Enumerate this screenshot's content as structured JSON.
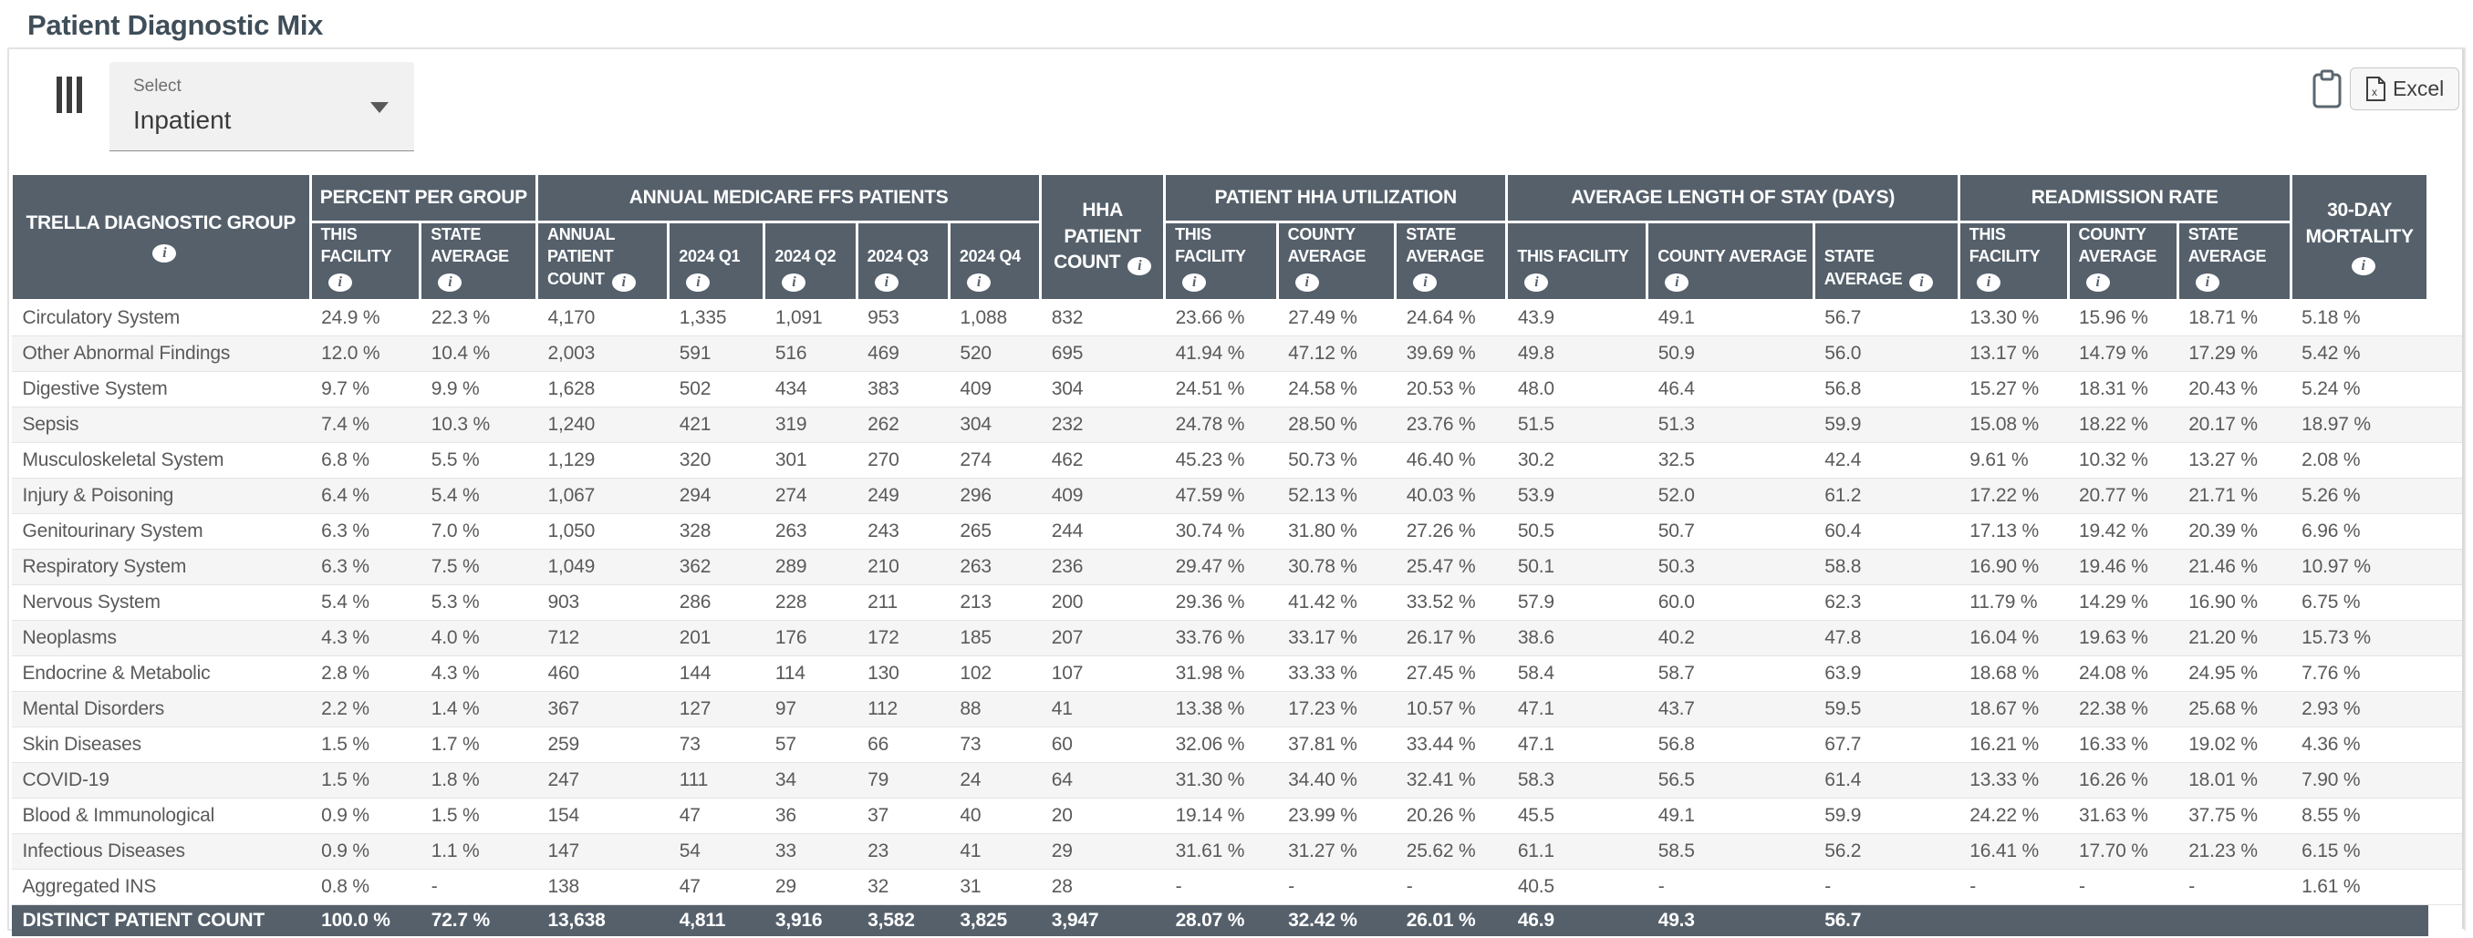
{
  "page": {
    "title": "Patient Diagnostic Mix"
  },
  "toolbar": {
    "select_label": "Select",
    "select_value": "Inpatient",
    "excel_label": "Excel",
    "clipboard_icon": "clipboard-icon",
    "grip_icon": "grip-vertical-icon",
    "info_icon_glyph": "i"
  },
  "colors": {
    "header_bg": "#55606B",
    "row_alt": "#F5F5F5",
    "title": "#3F4E59"
  },
  "table": {
    "header": {
      "groups": [
        {
          "label": "TRELLA DIAGNOSTIC GROUP",
          "info": true,
          "rowspan": 2
        },
        {
          "label": "PERCENT PER GROUP",
          "colspan": 2
        },
        {
          "label": "ANNUAL MEDICARE FFS PATIENTS",
          "colspan": 5
        },
        {
          "label": "HHA PATIENT COUNT",
          "info": true,
          "rowspan": 2
        },
        {
          "label": "PATIENT HHA UTILIZATION",
          "colspan": 3
        },
        {
          "label": "AVERAGE LENGTH OF STAY (DAYS)",
          "colspan": 3
        },
        {
          "label": "READMISSION RATE",
          "colspan": 3
        },
        {
          "label": "30-DAY MORTALITY",
          "info": true,
          "rowspan": 2
        },
        {
          "label": "",
          "rowspan": 2,
          "spacer": true
        }
      ],
      "sub": [
        {
          "label": "THIS FACILITY",
          "info": true
        },
        {
          "label": "STATE AVERAGE",
          "info": true
        },
        {
          "label": "ANNUAL PATIENT COUNT",
          "info": true
        },
        {
          "label": "2024 Q1",
          "info": true
        },
        {
          "label": "2024 Q2",
          "info": true
        },
        {
          "label": "2024 Q3",
          "info": true
        },
        {
          "label": "2024 Q4",
          "info": true
        },
        {
          "label": "THIS FACILITY",
          "info": true
        },
        {
          "label": "COUNTY AVERAGE",
          "info": true
        },
        {
          "label": "STATE AVERAGE",
          "info": true
        },
        {
          "label": "THIS FACILITY",
          "info": true
        },
        {
          "label": "COUNTY AVERAGE",
          "info": true,
          "truncate": true
        },
        {
          "label": "STATE AVERAGE",
          "info": true
        },
        {
          "label": "THIS FACILITY",
          "info": true
        },
        {
          "label": "COUNTY AVERAGE",
          "info": true
        },
        {
          "label": "STATE AVERAGE",
          "info": true
        }
      ]
    },
    "rows": [
      [
        "Circulatory System",
        "24.9 %",
        "22.3 %",
        "4,170",
        "1,335",
        "1,091",
        "953",
        "1,088",
        "832",
        "23.66 %",
        "27.49 %",
        "24.64 %",
        "43.9",
        "49.1",
        "56.7",
        "13.30 %",
        "15.96 %",
        "18.71 %",
        "5.18 %"
      ],
      [
        "Other Abnormal Findings",
        "12.0 %",
        "10.4 %",
        "2,003",
        "591",
        "516",
        "469",
        "520",
        "695",
        "41.94 %",
        "47.12 %",
        "39.69 %",
        "49.8",
        "50.9",
        "56.0",
        "13.17 %",
        "14.79 %",
        "17.29 %",
        "5.42 %"
      ],
      [
        "Digestive System",
        "9.7 %",
        "9.9 %",
        "1,628",
        "502",
        "434",
        "383",
        "409",
        "304",
        "24.51 %",
        "24.58 %",
        "20.53 %",
        "48.0",
        "46.4",
        "56.8",
        "15.27 %",
        "18.31 %",
        "20.43 %",
        "5.24 %"
      ],
      [
        "Sepsis",
        "7.4 %",
        "10.3 %",
        "1,240",
        "421",
        "319",
        "262",
        "304",
        "232",
        "24.78 %",
        "28.50 %",
        "23.76 %",
        "51.5",
        "51.3",
        "59.9",
        "15.08 %",
        "18.22 %",
        "20.17 %",
        "18.97 %"
      ],
      [
        "Musculoskeletal System",
        "6.8 %",
        "5.5 %",
        "1,129",
        "320",
        "301",
        "270",
        "274",
        "462",
        "45.23 %",
        "50.73 %",
        "46.40 %",
        "30.2",
        "32.5",
        "42.4",
        "9.61 %",
        "10.32 %",
        "13.27 %",
        "2.08 %"
      ],
      [
        "Injury & Poisoning",
        "6.4 %",
        "5.4 %",
        "1,067",
        "294",
        "274",
        "249",
        "296",
        "409",
        "47.59 %",
        "52.13 %",
        "40.03 %",
        "53.9",
        "52.0",
        "61.2",
        "17.22 %",
        "20.77 %",
        "21.71 %",
        "5.26 %"
      ],
      [
        "Genitourinary System",
        "6.3 %",
        "7.0 %",
        "1,050",
        "328",
        "263",
        "243",
        "265",
        "244",
        "30.74 %",
        "31.80 %",
        "27.26 %",
        "50.5",
        "50.7",
        "60.4",
        "17.13 %",
        "19.42 %",
        "20.39 %",
        "6.96 %"
      ],
      [
        "Respiratory System",
        "6.3 %",
        "7.5 %",
        "1,049",
        "362",
        "289",
        "210",
        "263",
        "236",
        "29.47 %",
        "30.78 %",
        "25.47 %",
        "50.1",
        "50.3",
        "58.8",
        "16.90 %",
        "19.46 %",
        "21.46 %",
        "10.97 %"
      ],
      [
        "Nervous System",
        "5.4 %",
        "5.3 %",
        "903",
        "286",
        "228",
        "211",
        "213",
        "200",
        "29.36 %",
        "41.42 %",
        "33.52 %",
        "57.9",
        "60.0",
        "62.3",
        "11.79 %",
        "14.29 %",
        "16.90 %",
        "6.75 %"
      ],
      [
        "Neoplasms",
        "4.3 %",
        "4.0 %",
        "712",
        "201",
        "176",
        "172",
        "185",
        "207",
        "33.76 %",
        "33.17 %",
        "26.17 %",
        "38.6",
        "40.2",
        "47.8",
        "16.04 %",
        "19.63 %",
        "21.20 %",
        "15.73 %"
      ],
      [
        "Endocrine & Metabolic",
        "2.8 %",
        "4.3 %",
        "460",
        "144",
        "114",
        "130",
        "102",
        "107",
        "31.98 %",
        "33.33 %",
        "27.45 %",
        "58.4",
        "58.7",
        "63.9",
        "18.68 %",
        "24.08 %",
        "24.95 %",
        "7.76 %"
      ],
      [
        "Mental Disorders",
        "2.2 %",
        "1.4 %",
        "367",
        "127",
        "97",
        "112",
        "88",
        "41",
        "13.38 %",
        "17.23 %",
        "10.57 %",
        "47.1",
        "43.7",
        "59.5",
        "18.67 %",
        "22.38 %",
        "25.68 %",
        "2.93 %"
      ],
      [
        "Skin Diseases",
        "1.5 %",
        "1.7 %",
        "259",
        "73",
        "57",
        "66",
        "73",
        "60",
        "32.06 %",
        "37.81 %",
        "33.44 %",
        "47.1",
        "56.8",
        "67.7",
        "16.21 %",
        "16.33 %",
        "19.02 %",
        "4.36 %"
      ],
      [
        "COVID-19",
        "1.5 %",
        "1.8 %",
        "247",
        "111",
        "34",
        "79",
        "24",
        "64",
        "31.30 %",
        "34.40 %",
        "32.41 %",
        "58.3",
        "56.5",
        "61.4",
        "13.33 %",
        "16.26 %",
        "18.01 %",
        "7.90 %"
      ],
      [
        "Blood & Immunological",
        "0.9 %",
        "1.5 %",
        "154",
        "47",
        "36",
        "37",
        "40",
        "20",
        "19.14 %",
        "23.99 %",
        "20.26 %",
        "45.5",
        "49.1",
        "59.9",
        "24.22 %",
        "31.63 %",
        "37.75 %",
        "8.55 %"
      ],
      [
        "Infectious Diseases",
        "0.9 %",
        "1.1 %",
        "147",
        "54",
        "33",
        "23",
        "41",
        "29",
        "31.61 %",
        "31.27 %",
        "25.62 %",
        "61.1",
        "58.5",
        "56.2",
        "16.41 %",
        "17.70 %",
        "21.23 %",
        "6.15 %"
      ],
      [
        "Aggregated INS",
        "0.8 %",
        "-",
        "138",
        "47",
        "29",
        "32",
        "31",
        "28",
        "-",
        "-",
        "-",
        "40.5",
        "-",
        "-",
        "-",
        "-",
        "-",
        "1.61 %"
      ]
    ],
    "footer": [
      "DISTINCT PATIENT COUNT",
      "100.0 %",
      "72.7 %",
      "13,638",
      "4,811",
      "3,916",
      "3,582",
      "3,825",
      "3,947",
      "28.07 %",
      "32.42 %",
      "26.01 %",
      "46.9",
      "49.3",
      "56.7",
      "",
      "",
      "",
      ""
    ]
  }
}
